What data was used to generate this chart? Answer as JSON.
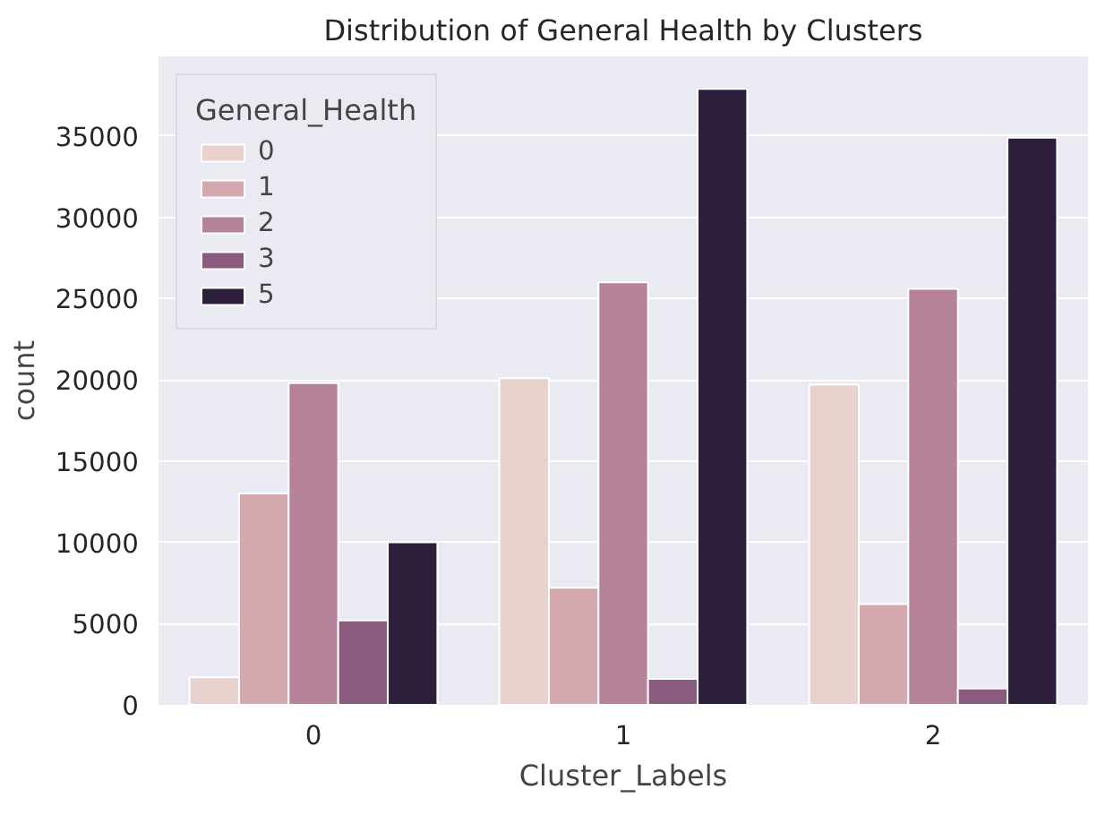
{
  "chart_data": {
    "type": "bar",
    "title": "Distribution of General Health by Clusters",
    "xlabel": "Cluster_Labels",
    "ylabel": "count",
    "legend_title": "General_Health",
    "categories": [
      "0",
      "1",
      "2"
    ],
    "series": [
      {
        "name": "0",
        "color": "#e9d1cd",
        "values": [
          1700,
          20100,
          19700
        ]
      },
      {
        "name": "1",
        "color": "#d4a9ae",
        "values": [
          13000,
          7200,
          6200
        ]
      },
      {
        "name": "2",
        "color": "#b5829a",
        "values": [
          19800,
          26000,
          25600
        ]
      },
      {
        "name": "3",
        "color": "#8b5a7f",
        "values": [
          5200,
          1600,
          1000
        ]
      },
      {
        "name": "5",
        "color": "#2d1e3a",
        "values": [
          10000,
          37900,
          34900
        ]
      }
    ],
    "ylim": [
      0,
      39900
    ],
    "yticks": [
      0,
      5000,
      10000,
      15000,
      20000,
      25000,
      30000,
      35000
    ],
    "grid": true,
    "legend": "top left"
  }
}
